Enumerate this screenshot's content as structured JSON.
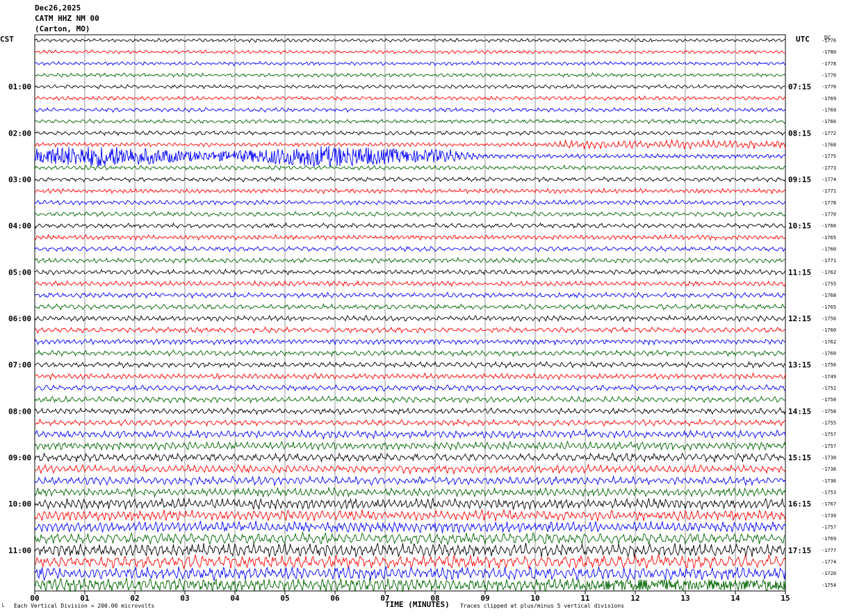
{
  "header": {
    "date": "Dec26,2025",
    "station": "CATM HHZ NM 00",
    "location": "(Carton, MO)"
  },
  "left_timezone": "CST",
  "right_timezone": "UTC",
  "dc_label": "DC",
  "footer": {
    "scale_note": "Each Vertical Division =  200.00 microvolts",
    "clip_note": "Traces clipped at plus/minus 5 vertical divisions",
    "corner_mark": "└"
  },
  "chart_data": {
    "type": "line",
    "xlabel": "TIME (MINUTES)",
    "x_ticks": [
      "00",
      "01",
      "02",
      "03",
      "04",
      "05",
      "06",
      "07",
      "08",
      "09",
      "10",
      "11",
      "12",
      "13",
      "14",
      "15"
    ],
    "xlim": [
      0,
      15
    ],
    "trace_colors": [
      "#000000",
      "#ff0000",
      "#0000ff",
      "#006400"
    ],
    "left_time_labels": [
      "01:00",
      "02:00",
      "03:00",
      "04:00",
      "05:00",
      "06:00",
      "07:00",
      "08:00",
      "09:00",
      "10:00",
      "11:00"
    ],
    "right_time_labels": [
      "07:15",
      "08:15",
      "09:15",
      "10:15",
      "11:15",
      "12:15",
      "13:15",
      "14:15",
      "15:15",
      "16:15",
      "17:15"
    ],
    "dc_offsets": [
      -1776,
      -1780,
      -1778,
      -1770,
      -1770,
      -1769,
      -1769,
      -1766,
      -1772,
      -1768,
      -1775,
      -1773,
      -1774,
      -1771,
      -1778,
      -1770,
      -1766,
      -1765,
      -1760,
      -1771,
      -1762,
      -1755,
      -1768,
      -1765,
      -1756,
      -1760,
      -1762,
      -1760,
      -1756,
      -1749,
      -1752,
      -1750,
      -1758,
      -1755,
      -1757,
      -1757,
      -1738,
      -1736,
      -1736,
      -1753,
      -1767,
      -1739,
      -1757,
      -1769,
      -1777,
      -1774,
      -1720,
      -1754
    ]
  }
}
